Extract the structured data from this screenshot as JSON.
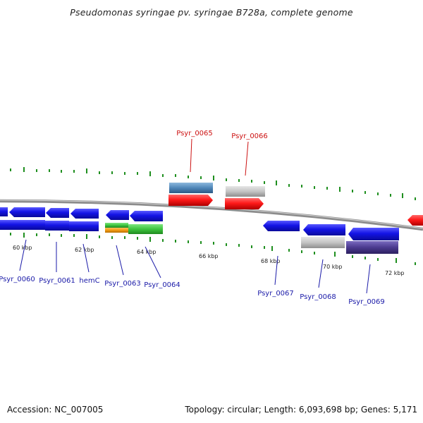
{
  "title": "Pseudomonas syringae pv. syringae B728a, complete genome",
  "accession": "Accession: NC_007005",
  "summary": "Topology: circular; Length: 6,093,698 bp; Genes: 5,171",
  "ticks": [
    "60 kbp",
    "62 kbp",
    "64 kbp",
    "66 kbp",
    "68 kbp",
    "70 kbp",
    "72 kbp"
  ],
  "genes": [
    {
      "label": "Psyr_0060",
      "color": "#1a1aa8"
    },
    {
      "label": "Psyr_0061",
      "color": "#1a1aa8"
    },
    {
      "label": "hemC",
      "color": "#1a1aa8"
    },
    {
      "label": "Psyr_0063",
      "color": "#1a1aa8"
    },
    {
      "label": "Psyr_0064",
      "color": "#1a1aa8"
    },
    {
      "label": "Psyr_0065",
      "color": "#cc1111"
    },
    {
      "label": "Psyr_0066",
      "color": "#cc1111"
    },
    {
      "label": "Psyr_0067",
      "color": "#1a1aa8"
    },
    {
      "label": "Psyr_0068",
      "color": "#1a1aa8"
    },
    {
      "label": "Psyr_0069",
      "color": "#1a1aa8"
    }
  ],
  "colors": {
    "cds": "#1414e6",
    "cds_highlight": "#ff1a1a",
    "backbone": "#8c8c8c",
    "tick": "#1f8f1f",
    "gray_feature": "#c4c4c4",
    "steel_feature": "#4f86b8",
    "green_feature": "#3ec43e",
    "orange_feature": "#f39c12",
    "purple_feature": "#4b3a8f"
  }
}
